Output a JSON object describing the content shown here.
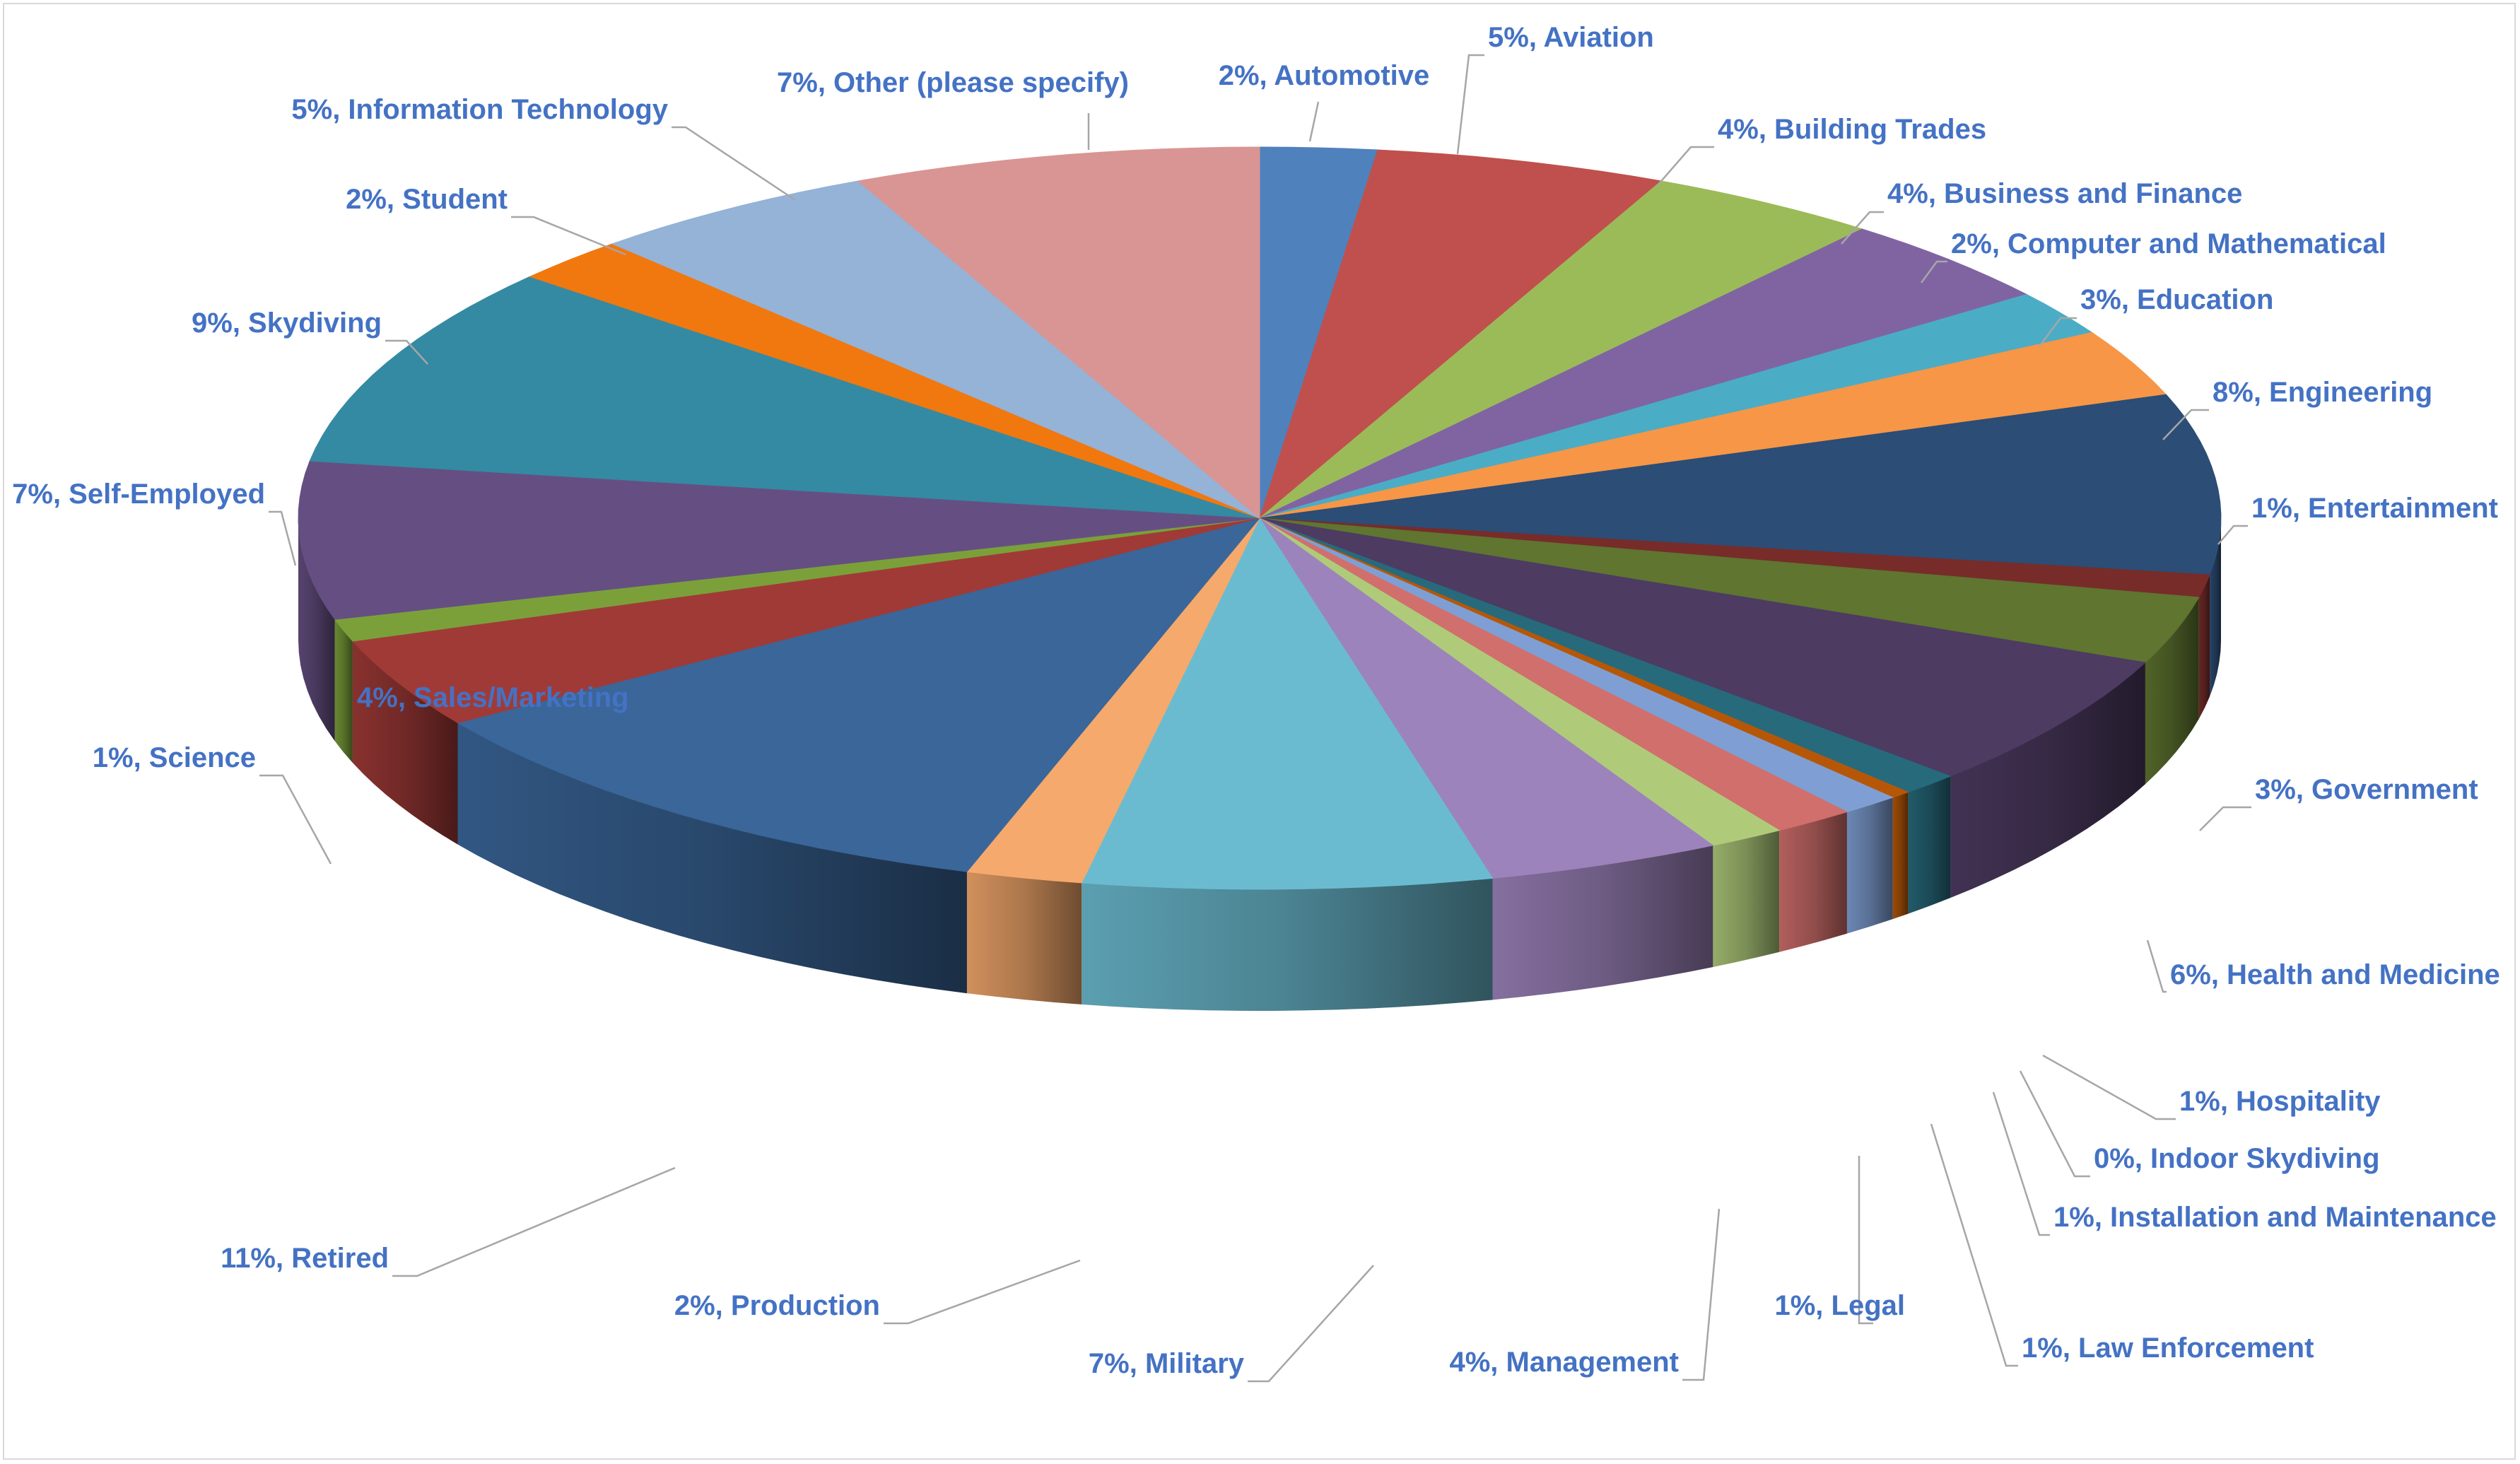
{
  "chart_data": {
    "type": "pie",
    "variant": "3d-pie",
    "title": "",
    "label_format": "percent, category",
    "start_angle_deg": 0,
    "direction": "clockwise",
    "label_color": "#4472c4",
    "slices": [
      {
        "category": "Automotive",
        "value": 2,
        "label": "2%, Automotive",
        "color": "#4f81bd"
      },
      {
        "category": "Aviation",
        "value": 5,
        "label": "5%, Aviation",
        "color": "#c0504d"
      },
      {
        "category": "Building Trades",
        "value": 4,
        "label": "4%, Building Trades",
        "color": "#9bbb59"
      },
      {
        "category": "Business and Finance",
        "value": 4,
        "label": "4%, Business and Finance",
        "color": "#8064a2"
      },
      {
        "category": "Computer and Mathematical",
        "value": 2,
        "label": "2%, Computer and Mathematical",
        "color": "#4bacc6"
      },
      {
        "category": "Education",
        "value": 3,
        "label": "3%, Education",
        "color": "#f79646"
      },
      {
        "category": "Engineering",
        "value": 8,
        "label": "8%, Engineering",
        "color": "#2c4d75"
      },
      {
        "category": "Entertainment",
        "value": 1,
        "label": "1%, Entertainment",
        "color": "#772c2a"
      },
      {
        "category": "Government",
        "value": 3,
        "label": "3%, Government",
        "color": "#5f7530"
      },
      {
        "category": "Health and Medicine",
        "value": 6,
        "label": "6%, Health and Medicine",
        "color": "#4d3b62"
      },
      {
        "category": "Hospitality",
        "value": 1,
        "label": "1%, Hospitality",
        "color": "#276a7c"
      },
      {
        "category": "Indoor Skydiving",
        "value": 0.35,
        "label": "0%, Indoor Skydiving",
        "color": "#b65708"
      },
      {
        "category": "Installation and Maintenance",
        "value": 1,
        "label": "1%, Installation and Maintenance",
        "color": "#7f9fd4"
      },
      {
        "category": "Law Enforcement",
        "value": 1.4,
        "label": "1%, Law Enforcement",
        "color": "#d16f6c"
      },
      {
        "category": "Legal",
        "value": 1.3,
        "label": "1%, Legal",
        "color": "#afcb7a"
      },
      {
        "category": "Management",
        "value": 4,
        "label": "4%, Management",
        "color": "#9d83bb"
      },
      {
        "category": "Military",
        "value": 7,
        "label": "7%, Military",
        "color": "#6bbbd0"
      },
      {
        "category": "Production",
        "value": 2,
        "label": "2%, Production",
        "color": "#f5a96c"
      },
      {
        "category": "Retired",
        "value": 11,
        "label": "11%, Retired",
        "color": "#3a6699"
      },
      {
        "category": "Sales/Marketing",
        "value": 4,
        "label": "4%, Sales/Marketing",
        "color": "#a03a37"
      },
      {
        "category": "Science",
        "value": 1,
        "label": "1%, Science",
        "color": "#7ba03a"
      },
      {
        "category": "Self-Employed",
        "value": 7,
        "label": "7%, Self-Employed",
        "color": "#654f82"
      },
      {
        "category": "Skydiving",
        "value": 9,
        "label": "9%, Skydiving",
        "color": "#348aa2"
      },
      {
        "category": "Student",
        "value": 2,
        "label": "2%, Student",
        "color": "#f0780f"
      },
      {
        "category": "Information Technology",
        "value": 5,
        "label": "5%, Information Technology",
        "color": "#95b2d7"
      },
      {
        "category": "Other (please specify)",
        "value": 7,
        "label": "7%, Other (please specify)",
        "color": "#d99593"
      }
    ]
  }
}
